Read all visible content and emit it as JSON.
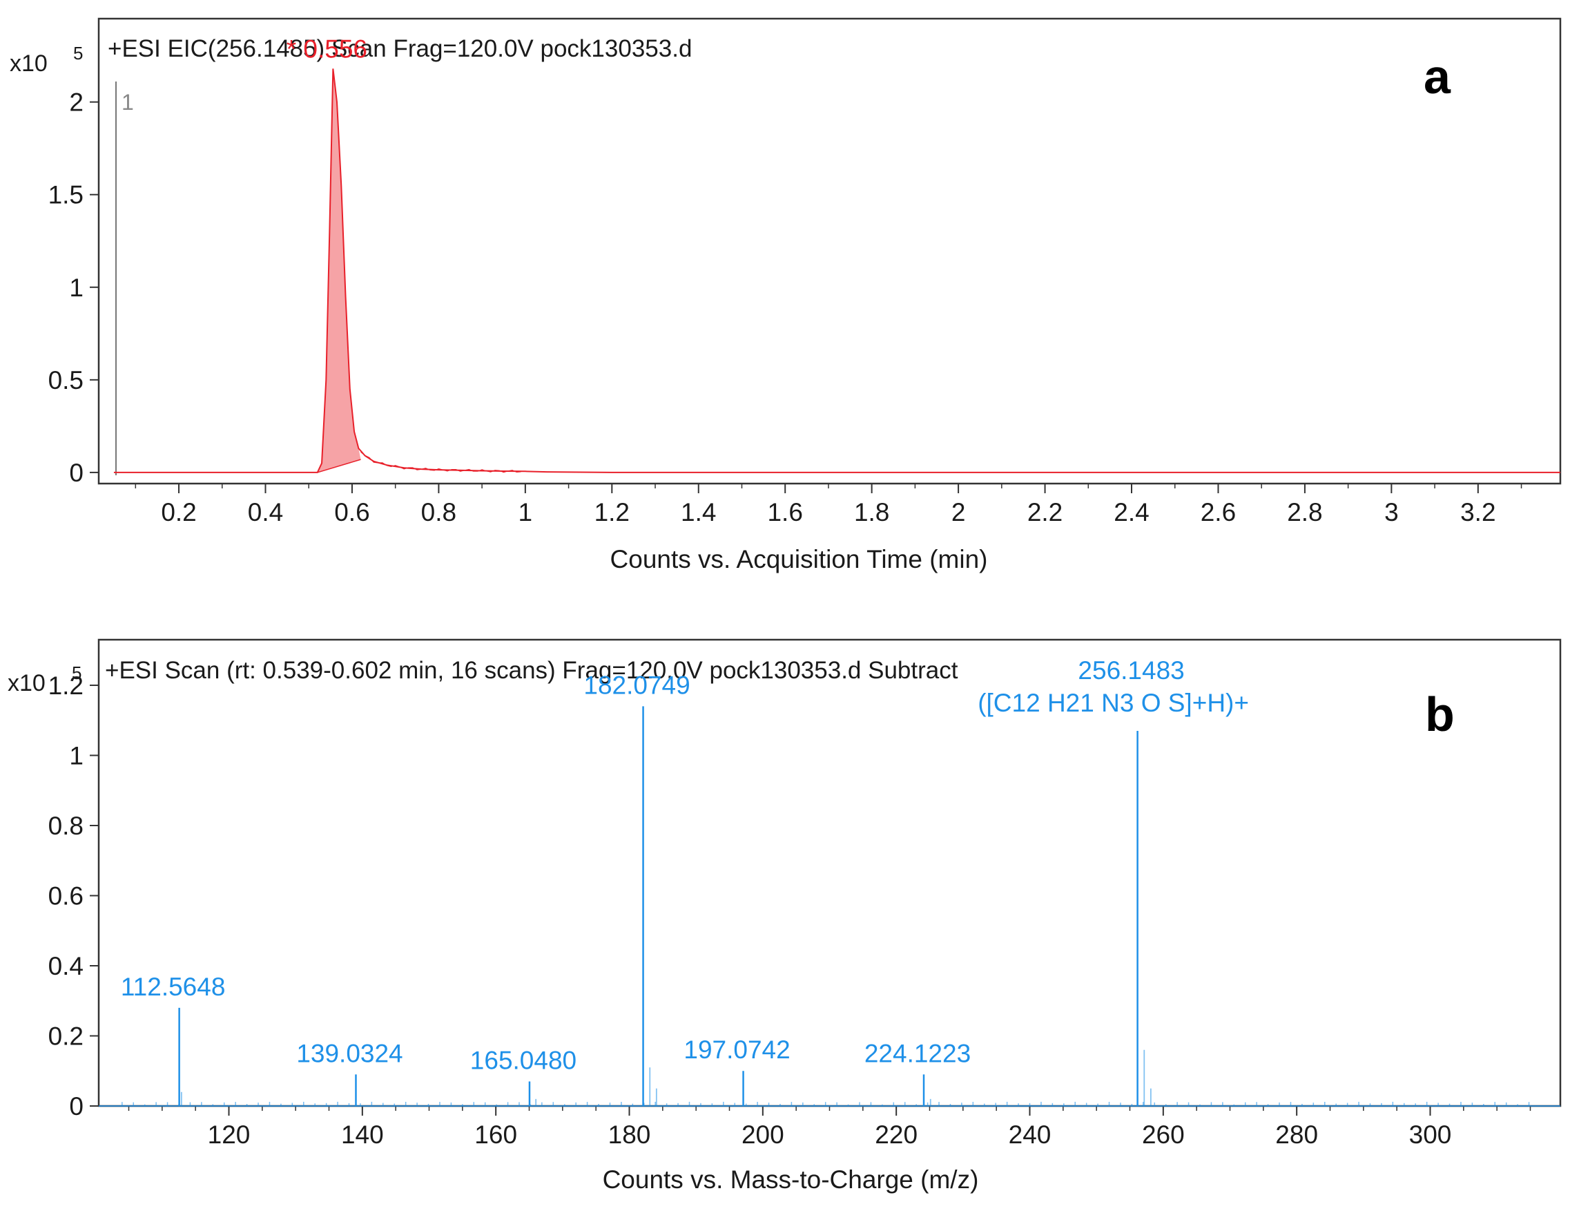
{
  "colors": {
    "eic": "#e8202a",
    "eic_fill": "#f6a3a6",
    "spectrum": "#1e90e8",
    "axis": "#333333"
  },
  "chart_data": [
    {
      "type": "line",
      "panel_label": "a",
      "title": "+ESI EIC(256.1485) Scan Frag=120.0V pock130353.d",
      "y_multiplier": "x10",
      "y_exponent": "5",
      "trace_number": "1",
      "xlabel": "Counts vs. Acquisition Time (min)",
      "ylabel": "",
      "xlim": [
        0.015,
        3.39
      ],
      "ylim": [
        -0.06,
        2.45
      ],
      "x_ticks": [
        0.2,
        0.4,
        0.6,
        0.8,
        1,
        1.2,
        1.4,
        1.6,
        1.8,
        2,
        2.2,
        2.4,
        2.6,
        2.8,
        3,
        3.2
      ],
      "y_ticks": [
        0,
        0.5,
        1,
        1.5,
        2
      ],
      "series": [
        {
          "name": "EIC 256.1485",
          "x": [
            0.05,
            0.52,
            0.53,
            0.54,
            0.548,
            0.556,
            0.565,
            0.575,
            0.585,
            0.595,
            0.605,
            0.615,
            0.63,
            0.65,
            0.68,
            0.72,
            0.76,
            0.8,
            0.85,
            0.9,
            0.95,
            1.0,
            1.05,
            1.2,
            1.6,
            2.0,
            2.6,
            3.39
          ],
          "values": [
            0.0,
            0.0,
            0.05,
            0.5,
            1.3,
            2.18,
            2.0,
            1.55,
            0.95,
            0.45,
            0.22,
            0.13,
            0.09,
            0.06,
            0.04,
            0.025,
            0.018,
            0.014,
            0.012,
            0.009,
            0.007,
            0.006,
            0.003,
            0.0,
            0.0,
            0.0,
            0.0,
            0.0
          ]
        }
      ],
      "integrated_region": [
        0.52,
        0.62
      ],
      "annotations": [
        {
          "x": 0.556,
          "y": 2.18,
          "label": "* 0.556"
        }
      ]
    },
    {
      "type": "bar",
      "panel_label": "b",
      "title": "+ESI Scan (rt: 0.539-0.602 min, 16 scans) Frag=120.0V pock130353.d  Subtract",
      "y_multiplier": "x10",
      "y_exponent": "5",
      "xlabel": "Counts vs. Mass-to-Charge (m/z)",
      "ylabel": "",
      "xlim": [
        100.5,
        319.5
      ],
      "ylim": [
        0,
        1.33
      ],
      "x_ticks": [
        120,
        140,
        160,
        180,
        200,
        220,
        240,
        260,
        280,
        300
      ],
      "y_ticks": [
        0,
        0.2,
        0.4,
        0.6,
        0.8,
        1,
        1.2
      ],
      "peaks": [
        {
          "mz": 112.5648,
          "intensity": 0.28,
          "label": "112.5648"
        },
        {
          "mz": 112.9,
          "intensity": 0.04
        },
        {
          "mz": 139.0324,
          "intensity": 0.09,
          "label": "139.0324"
        },
        {
          "mz": 165.048,
          "intensity": 0.07,
          "label": "165.0480"
        },
        {
          "mz": 166.0,
          "intensity": 0.02
        },
        {
          "mz": 182.0749,
          "intensity": 1.14,
          "label": "182.0749"
        },
        {
          "mz": 183.08,
          "intensity": 0.11
        },
        {
          "mz": 184.07,
          "intensity": 0.05
        },
        {
          "mz": 197.0742,
          "intensity": 0.1,
          "label": "197.0742"
        },
        {
          "mz": 224.1223,
          "intensity": 0.09,
          "label": "224.1223"
        },
        {
          "mz": 225.13,
          "intensity": 0.02
        },
        {
          "mz": 256.1483,
          "intensity": 1.07,
          "label": "256.1483",
          "sublabel": "([C12 H21 N3 O S]+H)+"
        },
        {
          "mz": 257.15,
          "intensity": 0.16
        },
        {
          "mz": 258.14,
          "intensity": 0.05
        }
      ]
    }
  ]
}
